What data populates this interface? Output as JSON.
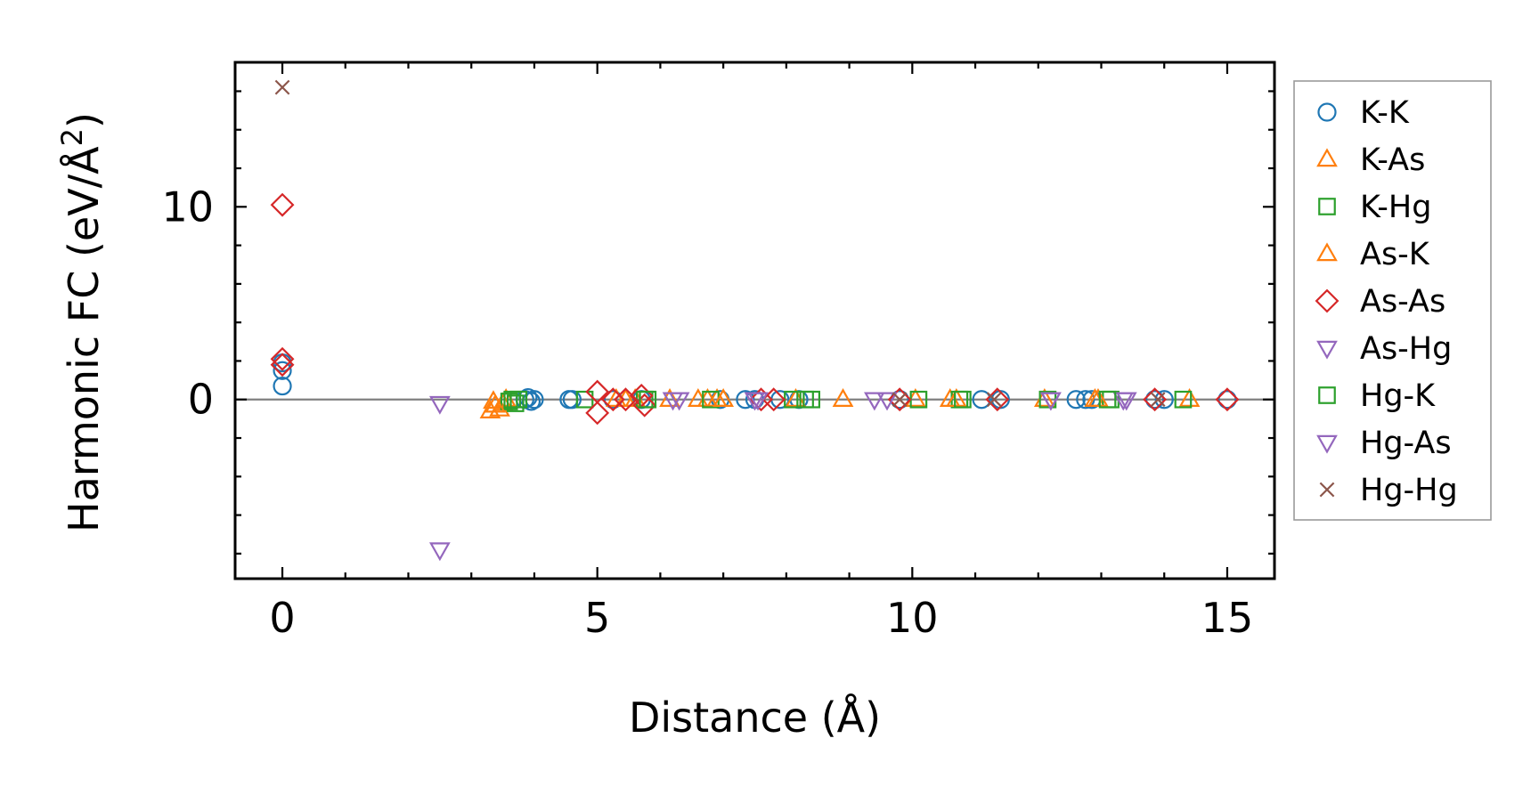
{
  "chart_data": {
    "type": "scatter",
    "xlabel": "Distance (Å)",
    "ylabel_main": "Harmonic FC (eV/Å",
    "ylabel_sup": "2",
    "ylabel_close": ")",
    "xlim": [
      -0.75,
      15.75
    ],
    "ylim": [
      -9.3,
      17.5
    ],
    "xticks": [
      0,
      5,
      10,
      15
    ],
    "xtick_labels": [
      "0",
      "5",
      "10",
      "15"
    ],
    "yticks": [
      0,
      10
    ],
    "ytick_labels": [
      "0",
      "10"
    ],
    "x_minor_step": 1,
    "y_minor_step": 2,
    "zero_line": true,
    "grid": false,
    "legend_position": "outside-right",
    "series": [
      {
        "name": "K-K",
        "marker": "circle",
        "color": "#1f77b4",
        "points": [
          [
            0,
            1.9
          ],
          [
            0,
            1.5
          ],
          [
            0,
            0.7
          ],
          [
            3.85,
            0
          ],
          [
            3.9,
            0.1
          ],
          [
            3.95,
            -0.1
          ],
          [
            4.0,
            0
          ],
          [
            4.55,
            0
          ],
          [
            4.6,
            0
          ],
          [
            5.25,
            0
          ],
          [
            5.7,
            0
          ],
          [
            6.95,
            0
          ],
          [
            7.35,
            0
          ],
          [
            7.5,
            0
          ],
          [
            7.9,
            0
          ],
          [
            8.2,
            0
          ],
          [
            9.8,
            0
          ],
          [
            11.1,
            0
          ],
          [
            11.4,
            0
          ],
          [
            12.6,
            0
          ],
          [
            12.75,
            0
          ],
          [
            12.85,
            0
          ],
          [
            13.85,
            0
          ],
          [
            14.0,
            0
          ],
          [
            15.0,
            0
          ]
        ]
      },
      {
        "name": "K-As",
        "marker": "triangle-up",
        "color": "#ff7f0e",
        "points": [
          [
            3.3,
            -0.6
          ],
          [
            3.35,
            -0.1
          ],
          [
            3.45,
            -0.5
          ],
          [
            3.5,
            -0.2
          ],
          [
            3.55,
            0
          ],
          [
            5.3,
            0
          ],
          [
            5.6,
            0
          ],
          [
            6.15,
            0
          ],
          [
            6.6,
            0
          ],
          [
            6.75,
            0
          ],
          [
            6.9,
            0
          ],
          [
            8.15,
            0
          ],
          [
            8.9,
            0
          ],
          [
            10.05,
            0
          ],
          [
            10.6,
            0
          ],
          [
            12.1,
            0
          ],
          [
            12.9,
            0
          ],
          [
            14.4,
            0
          ]
        ]
      },
      {
        "name": "K-Hg",
        "marker": "square",
        "color": "#2ca02c",
        "points": [
          [
            3.6,
            -0.1
          ],
          [
            3.65,
            0
          ],
          [
            3.7,
            -0.2
          ],
          [
            4.8,
            0
          ],
          [
            5.75,
            0
          ],
          [
            6.8,
            0
          ],
          [
            8.1,
            0
          ],
          [
            8.4,
            0
          ],
          [
            10.1,
            0
          ],
          [
            10.75,
            0
          ],
          [
            12.15,
            0
          ],
          [
            13.15,
            0
          ],
          [
            14.3,
            0
          ]
        ]
      },
      {
        "name": "As-K",
        "marker": "triangle-up",
        "color": "#ff7f0e",
        "points": [
          [
            3.38,
            -0.3
          ],
          [
            5.45,
            0
          ],
          [
            7.0,
            0
          ],
          [
            10.7,
            0
          ],
          [
            12.95,
            0
          ]
        ]
      },
      {
        "name": "As-As",
        "marker": "diamond",
        "color": "#d62728",
        "points": [
          [
            0,
            10.1
          ],
          [
            0,
            2.1
          ],
          [
            0,
            1.8
          ],
          [
            5.0,
            0.4
          ],
          [
            5.0,
            -0.7
          ],
          [
            5.25,
            0
          ],
          [
            5.45,
            0
          ],
          [
            5.7,
            0.2
          ],
          [
            5.75,
            -0.3
          ],
          [
            7.6,
            0
          ],
          [
            7.8,
            0
          ],
          [
            9.8,
            0
          ],
          [
            11.35,
            0
          ],
          [
            13.85,
            0
          ],
          [
            15.0,
            0
          ]
        ]
      },
      {
        "name": "As-Hg",
        "marker": "triangle-down",
        "color": "#9467bd",
        "points": [
          [
            2.5,
            -0.2
          ],
          [
            2.5,
            -7.8
          ],
          [
            6.2,
            0
          ],
          [
            7.5,
            0
          ],
          [
            9.4,
            0
          ],
          [
            12.2,
            0
          ],
          [
            13.35,
            0
          ]
        ]
      },
      {
        "name": "Hg-K",
        "marker": "square",
        "color": "#2ca02c",
        "points": [
          [
            3.75,
            0
          ],
          [
            5.8,
            0
          ],
          [
            8.3,
            0
          ],
          [
            10.8,
            0
          ],
          [
            13.1,
            0
          ]
        ]
      },
      {
        "name": "Hg-As",
        "marker": "triangle-down",
        "color": "#9467bd",
        "points": [
          [
            6.3,
            0
          ],
          [
            7.55,
            0
          ],
          [
            9.6,
            0
          ],
          [
            12.2,
            0
          ],
          [
            13.4,
            0
          ]
        ]
      },
      {
        "name": "Hg-Hg",
        "marker": "x",
        "color": "#8c564b",
        "points": [
          [
            0,
            16.2
          ],
          [
            9.8,
            0
          ],
          [
            11.3,
            0
          ],
          [
            13.9,
            0
          ]
        ]
      }
    ]
  }
}
